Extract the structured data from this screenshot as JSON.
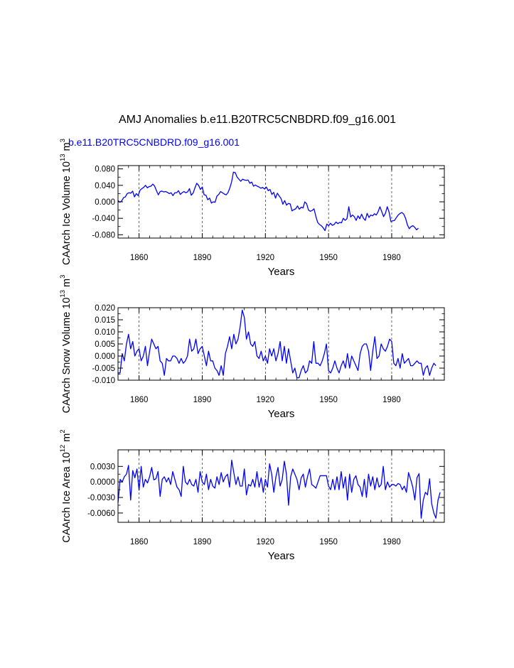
{
  "figure": {
    "title": "AMJ Anomalies b.e11.B20TRC5CNBDRD.f09_g16.001",
    "legend_label": "b.e11.B20TRC5CNBDRD.f09_g16.001",
    "line_color": "#0000ff"
  },
  "chart_data": [
    {
      "type": "line",
      "title": "AMJ Anomalies b.e11.B20TRC5CNBDRD.f09_g16.001",
      "series_name": "b.e11.B20TRC5CNBDRD.f09_g16.001",
      "ylabel_main": "CAArch Ice Volume 10",
      "ylabel_exp": "13",
      "ylabel_unit": " m",
      "ylabel_unit_exp": "3",
      "xlabel": "Years",
      "xlim": [
        1850,
        2005
      ],
      "ylim": [
        -0.088,
        0.088
      ],
      "xticks": [
        1860,
        1890,
        1920,
        1950,
        1980
      ],
      "xtick_labels": [
        "1860",
        "1890",
        "1920",
        "1950",
        "1980"
      ],
      "yticks": [
        0.08,
        0.04,
        0.0,
        -0.04,
        -0.08
      ],
      "ytick_labels": [
        "0.080",
        "0.040",
        "0.000",
        "-0.040",
        "-0.080"
      ],
      "x_start": 1850,
      "values": [
        0.003,
        -0.001,
        0.002,
        0.01,
        0.012,
        0.02,
        0.022,
        0.021,
        0.026,
        0.012,
        0.02,
        0.015,
        0.028,
        0.032,
        0.035,
        0.04,
        0.034,
        0.037,
        0.038,
        0.043,
        0.038,
        0.027,
        0.017,
        0.025,
        0.026,
        0.024,
        0.025,
        0.023,
        0.02,
        0.022,
        0.015,
        0.022,
        0.022,
        0.027,
        0.018,
        0.022,
        0.025,
        0.022,
        0.024,
        0.032,
        0.016,
        0.021,
        0.034,
        0.045,
        0.04,
        0.03,
        0.036,
        0.017,
        0.016,
        0.005,
        0.009,
        -0.003,
        0.0,
        -0.001,
        0.014,
        0.018,
        0.025,
        0.022,
        0.019,
        0.017,
        0.022,
        0.033,
        0.048,
        0.072,
        0.071,
        0.06,
        0.055,
        0.05,
        0.055,
        0.053,
        0.052,
        0.053,
        0.045,
        0.048,
        0.038,
        0.041,
        0.038,
        0.036,
        0.033,
        0.035,
        0.031,
        0.036,
        0.027,
        0.03,
        0.018,
        0.023,
        0.009,
        0.021,
        0.014,
        0.008,
        -0.006,
        0.003,
        -0.008,
        -0.004,
        -0.005,
        -0.022,
        -0.019,
        -0.017,
        -0.01,
        -0.018,
        -0.013,
        -0.015,
        0.0,
        -0.005,
        -0.02,
        -0.023,
        -0.021,
        -0.017,
        -0.035,
        -0.05,
        -0.055,
        -0.058,
        -0.063,
        -0.07,
        -0.054,
        -0.058,
        -0.052,
        -0.057,
        -0.055,
        -0.049,
        -0.053,
        -0.05,
        -0.051,
        -0.04,
        -0.045,
        -0.041,
        -0.012,
        -0.037,
        -0.032,
        -0.036,
        -0.045,
        -0.034,
        -0.041,
        -0.03,
        -0.04,
        -0.045,
        -0.028,
        -0.038,
        -0.032,
        -0.034,
        -0.029,
        -0.032,
        -0.024,
        -0.012,
        -0.024,
        -0.036,
        -0.028,
        -0.012,
        -0.025,
        -0.048,
        -0.046,
        -0.045,
        -0.038,
        -0.032,
        -0.028,
        -0.026,
        -0.03,
        -0.04,
        -0.056,
        -0.065,
        -0.06,
        -0.058,
        -0.062,
        -0.068,
        -0.064
      ],
      "x_step": 0.87
    },
    {
      "type": "line",
      "ylabel_main": "CAArch Snow Volume 10",
      "ylabel_exp": "13",
      "ylabel_unit": " m",
      "ylabel_unit_exp": "3",
      "xlabel": "Years",
      "xlim": [
        1850,
        2005
      ],
      "ylim": [
        -0.01,
        0.02
      ],
      "xticks": [
        1860,
        1890,
        1920,
        1950,
        1980
      ],
      "xtick_labels": [
        "1860",
        "1890",
        "1920",
        "1950",
        "1980"
      ],
      "yticks": [
        0.02,
        0.015,
        0.01,
        0.005,
        0.0,
        -0.005,
        -0.01
      ],
      "ytick_labels": [
        "0.020",
        "0.015",
        "0.010",
        "0.005",
        "0.000",
        "-0.005",
        "-0.010"
      ],
      "x_start": 1850,
      "values": [
        -0.007,
        -0.007,
        0.001,
        -0.002,
        0.005,
        0.009,
        0.003,
        0.006,
        0.0,
        0.002,
        0.003,
        -0.002,
        0.0,
        0.004,
        -0.004,
        0.002,
        0.007,
        0.005,
        0.003,
        0.004,
        -0.002,
        -0.003,
        -0.008,
        -0.001,
        -0.002,
        -0.002,
        0.0,
        0.0,
        -0.001,
        -0.003,
        -0.001,
        -0.003,
        -0.002,
        0.0,
        0.007,
        0.002,
        0.003,
        0.007,
        0.001,
        0.003,
        0.004,
        0.0,
        -0.004,
        0.002,
        -0.002,
        -0.002,
        -0.005,
        -0.006,
        -0.008,
        -0.004,
        -0.008,
        0.001,
        0.004,
        0.008,
        0.003,
        0.009,
        0.005,
        0.007,
        0.012,
        0.019,
        0.016,
        0.007,
        0.01,
        0.005,
        0.004,
        0.006,
        0.0,
        -0.001,
        0.002,
        -0.002,
        0.0,
        -0.003,
        0.003,
        0.0,
        0.003,
        -0.002,
        0.001,
        0.006,
        -0.002,
        0.004,
        -0.003,
        0.003,
        -0.002,
        -0.007,
        -0.005,
        -0.009,
        -0.009,
        -0.006,
        -0.004,
        -0.007,
        -0.006,
        -0.002,
        -0.003,
        0.006,
        -0.003,
        -0.003,
        -0.004,
        -0.002,
        0.001,
        0.005,
        -0.006,
        -0.007,
        -0.005,
        -0.002,
        -0.005,
        -0.007,
        -0.004,
        -0.002,
        -0.005,
        0.001,
        -0.005,
        0.0,
        -0.002,
        -0.004,
        -0.006,
        0.001,
        0.004,
        0.005,
        0.005,
        0.002,
        -0.006,
        0.002,
        0.008,
        -0.001,
        0.0,
        0.005,
        0.003,
        0.002,
        0.004,
        0.007,
        0.006,
        -0.003,
        -0.004,
        -0.001,
        -0.005,
        0.001,
        -0.003,
        -0.002,
        -0.001,
        -0.004,
        -0.004,
        -0.003,
        -0.002,
        -0.003,
        -0.003,
        -0.008,
        -0.005,
        -0.004,
        -0.008,
        -0.005,
        -0.003,
        -0.004
      ],
      "x_step": 1.0
    },
    {
      "type": "line",
      "ylabel_main": "CAArch Ice Area 10",
      "ylabel_exp": "12",
      "ylabel_unit": " m",
      "ylabel_unit_exp": "2",
      "xlabel": "Years",
      "xlim": [
        1850,
        2005
      ],
      "ylim": [
        -0.0078,
        0.0062
      ],
      "xticks": [
        1860,
        1890,
        1920,
        1950,
        1980
      ],
      "xtick_labels": [
        "1860",
        "1890",
        "1920",
        "1950",
        "1980"
      ],
      "yticks": [
        0.003,
        0.0,
        -0.003,
        -0.006
      ],
      "ytick_labels": [
        "0.0030",
        "0.0000",
        "-0.0030",
        "-0.0060"
      ],
      "x_start": 1850,
      "values": [
        -0.004,
        0.0005,
        0.0,
        0.001,
        0.0015,
        0.0032,
        -0.0035,
        0.0022,
        0.0008,
        0.0025,
        -0.0016,
        0.003,
        -0.001,
        0.0005,
        -0.0002,
        0.001,
        0.0028,
        0.0004,
        0.0006,
        0.002,
        -0.0028,
        0.0005,
        0.001,
        0.0,
        0.0008,
        -0.0005,
        0.002,
        0.0005,
        -0.001,
        -0.0015,
        -0.0028,
        0.003,
        0.0,
        -0.0005,
        0.0005,
        -0.0005,
        -0.0008,
        0.0005,
        -0.002,
        0.002,
        0.0,
        -0.0005,
        0.0015,
        -0.0015,
        0.0005,
        -0.0008,
        -0.0012,
        0.001,
        -0.0005,
        0.0018,
        0.0,
        0.001,
        0.0015,
        -0.001,
        0.0042,
        0.0018,
        -0.0005,
        0.001,
        -0.0008,
        -0.0008,
        0.0025,
        -0.0025,
        -0.0005,
        -0.0008,
        0.0005,
        -0.001,
        0.002,
        -0.001,
        0.0008,
        -0.002,
        0.0005,
        -0.001,
        0.0035,
        0.0015,
        -0.002,
        0.001,
        0.0028,
        -0.0008,
        0.0005,
        0.004,
        0.0015,
        -0.0045,
        0.001,
        0.0025,
        0.0015,
        0.0005,
        -0.0015,
        0.0008,
        0.0015,
        -0.001,
        0.001,
        0.0025,
        -0.0005,
        -0.0008,
        -0.0012,
        0.0,
        0.0012,
        0.0012,
        0.0012,
        0.0012,
        -0.0008,
        -0.0015,
        0.0005,
        -0.0015,
        0.001,
        -0.0015,
        0.002,
        -0.0012,
        0.001,
        -0.0035,
        0.0015,
        -0.002,
        0.0005,
        0.0012,
        -0.0005,
        -0.001,
        -0.0028,
        0.0005,
        -0.003,
        0.0015,
        -0.0008,
        0.001,
        -0.0015,
        0.0008,
        -0.001,
        -0.0005,
        0.003,
        -0.0015,
        0.0,
        -0.001,
        -0.0005,
        -0.0005,
        -0.0008,
        -0.0003,
        -0.0005,
        -0.0015,
        -0.0008,
        -0.002,
        0.0018,
        0.0005,
        -0.001,
        -0.0035,
        0.0008,
        0.0016,
        -0.007,
        -0.0035,
        -0.002,
        -0.0025,
        0.0006,
        -0.0042,
        -0.006,
        -0.007,
        -0.0035,
        -0.002
      ],
      "x_step": 1.0
    }
  ]
}
